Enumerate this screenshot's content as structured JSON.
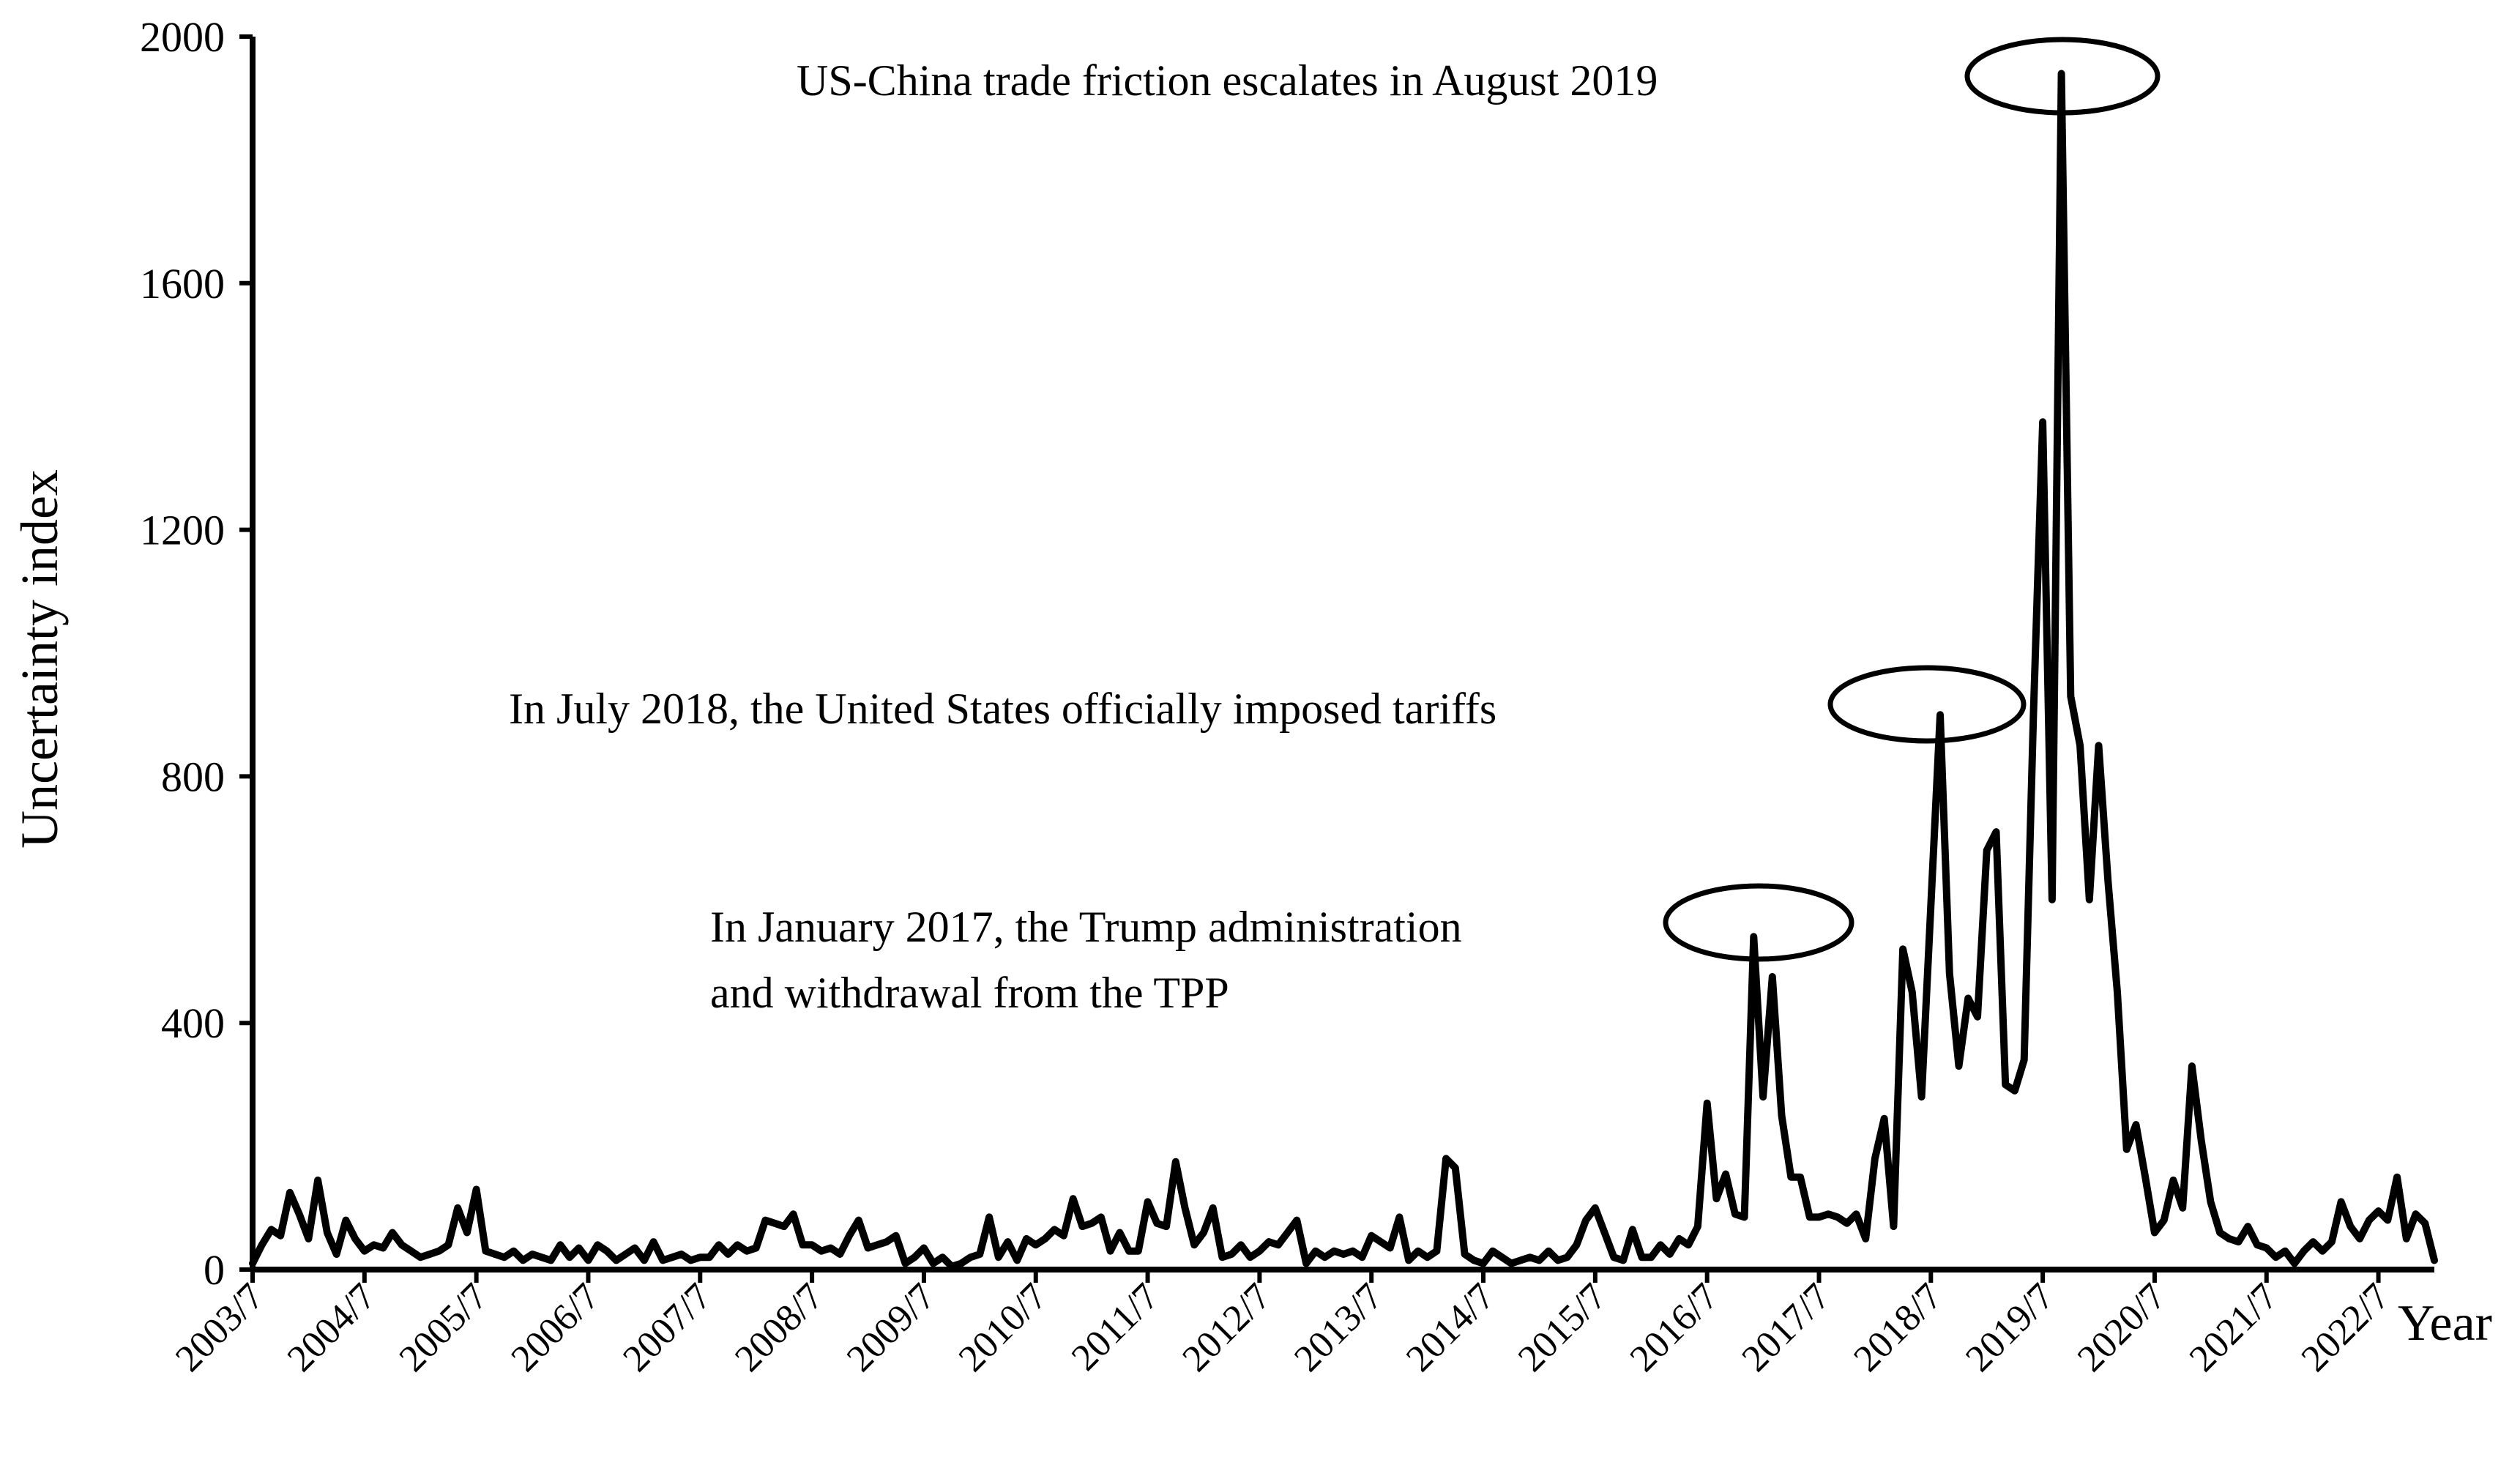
{
  "chart_data": {
    "type": "line",
    "title": "",
    "ylabel": "Uncertainty index",
    "xlabel": "Year",
    "ylim": [
      0,
      2000
    ],
    "yticks": [
      "0",
      "400",
      "800",
      "1200",
      "1600",
      "2000"
    ],
    "x_start": {
      "year": 2003,
      "month": 7
    },
    "xtick_labels": [
      "2003/7",
      "2004/7",
      "2005/7",
      "2006/7",
      "2007/7",
      "2008/7",
      "2009/7",
      "2010/7",
      "2011/7",
      "2012/7",
      "2013/7",
      "2014/7",
      "2015/7",
      "2016/7",
      "2017/7",
      "2018/7",
      "2019/7",
      "2020/7",
      "2021/7",
      "2022/7"
    ],
    "series": [
      {
        "name": "Uncertainty index",
        "color": "#000000",
        "values": [
          10,
          40,
          65,
          55,
          125,
          90,
          50,
          145,
          60,
          25,
          80,
          50,
          30,
          40,
          35,
          60,
          40,
          30,
          20,
          25,
          30,
          40,
          100,
          60,
          130,
          30,
          25,
          20,
          30,
          15,
          25,
          20,
          15,
          40,
          20,
          35,
          15,
          40,
          30,
          15,
          25,
          35,
          15,
          45,
          15,
          20,
          25,
          15,
          20,
          20,
          40,
          25,
          40,
          30,
          35,
          80,
          75,
          70,
          90,
          40,
          40,
          30,
          35,
          25,
          55,
          80,
          35,
          40,
          45,
          55,
          10,
          20,
          35,
          10,
          20,
          5,
          10,
          20,
          25,
          85,
          20,
          45,
          15,
          50,
          40,
          50,
          65,
          55,
          115,
          70,
          75,
          85,
          30,
          60,
          30,
          30,
          110,
          75,
          70,
          175,
          100,
          40,
          60,
          100,
          20,
          25,
          40,
          20,
          30,
          45,
          40,
          60,
          80,
          10,
          30,
          20,
          30,
          25,
          30,
          20,
          55,
          45,
          35,
          85,
          15,
          30,
          20,
          30,
          180,
          165,
          25,
          15,
          10,
          30,
          20,
          10,
          15,
          20,
          15,
          30,
          15,
          20,
          40,
          80,
          100,
          60,
          20,
          15,
          65,
          20,
          20,
          40,
          25,
          50,
          40,
          70,
          270,
          115,
          155,
          90,
          85,
          540,
          280,
          475,
          250,
          150,
          150,
          85,
          85,
          90,
          85,
          75,
          90,
          50,
          180,
          245,
          70,
          520,
          450,
          280,
          590,
          900,
          480,
          330,
          440,
          410,
          680,
          710,
          300,
          290,
          340,
          900,
          1375,
          600,
          1940,
          930,
          850,
          600,
          850,
          630,
          450,
          195,
          235,
          150,
          60,
          80,
          145,
          100,
          330,
          210,
          110,
          60,
          50,
          45,
          70,
          40,
          35,
          20,
          30,
          10,
          30,
          45,
          30,
          45,
          110,
          70,
          50,
          80,
          95,
          80,
          150,
          50,
          90,
          75,
          15
        ]
      }
    ],
    "annotations": [
      {
        "text": "US-China trade friction escalates in August 2019",
        "target_index": 193
      },
      {
        "text": "In July 2018, the United States officially imposed tariffs",
        "target_index": 181
      },
      {
        "lines": [
          "In January 2017, the Trump administration",
          "and withdrawal from the TPP"
        ],
        "target_index": 162
      }
    ]
  }
}
